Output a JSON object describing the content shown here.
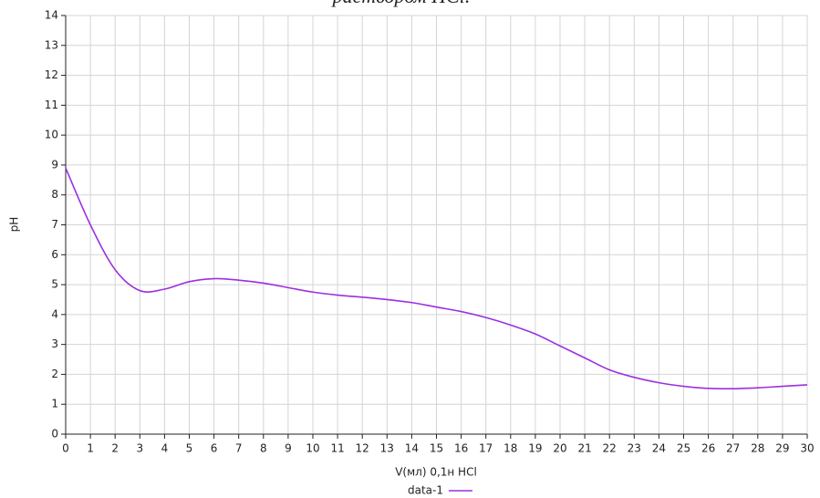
{
  "chart_data": {
    "type": "line",
    "title": "раствором HCl.",
    "x_label": "V(мл) 0,1н HCl",
    "y_label": "pH",
    "x": [
      0,
      1,
      2,
      3,
      4,
      5,
      6,
      7,
      8,
      9,
      10,
      11,
      12,
      13,
      14,
      15,
      16,
      17,
      18,
      19,
      20,
      21,
      22,
      23,
      24,
      25,
      26,
      27,
      28,
      29,
      30
    ],
    "series": [
      {
        "name": "data-1",
        "color": "#9b30e0",
        "values": [
          8.9,
          7.0,
          5.5,
          4.8,
          4.85,
          5.1,
          5.2,
          5.15,
          5.05,
          4.9,
          4.75,
          4.65,
          4.58,
          4.5,
          4.4,
          4.25,
          4.1,
          3.9,
          3.65,
          3.35,
          2.95,
          2.55,
          2.15,
          1.9,
          1.72,
          1.6,
          1.53,
          1.52,
          1.55,
          1.6,
          1.65
        ]
      }
    ],
    "xlim": [
      0,
      30
    ],
    "xticks": [
      0,
      1,
      2,
      3,
      4,
      5,
      6,
      7,
      8,
      9,
      10,
      11,
      12,
      13,
      14,
      15,
      16,
      17,
      18,
      19,
      20,
      21,
      22,
      23,
      24,
      25,
      26,
      27,
      28,
      29,
      30
    ],
    "ylim": [
      0,
      14
    ],
    "yticks": [
      0,
      1,
      2,
      3,
      4,
      5,
      6,
      7,
      8,
      9,
      10,
      11,
      12,
      13,
      14
    ],
    "grid": true,
    "legend": "bottom"
  }
}
